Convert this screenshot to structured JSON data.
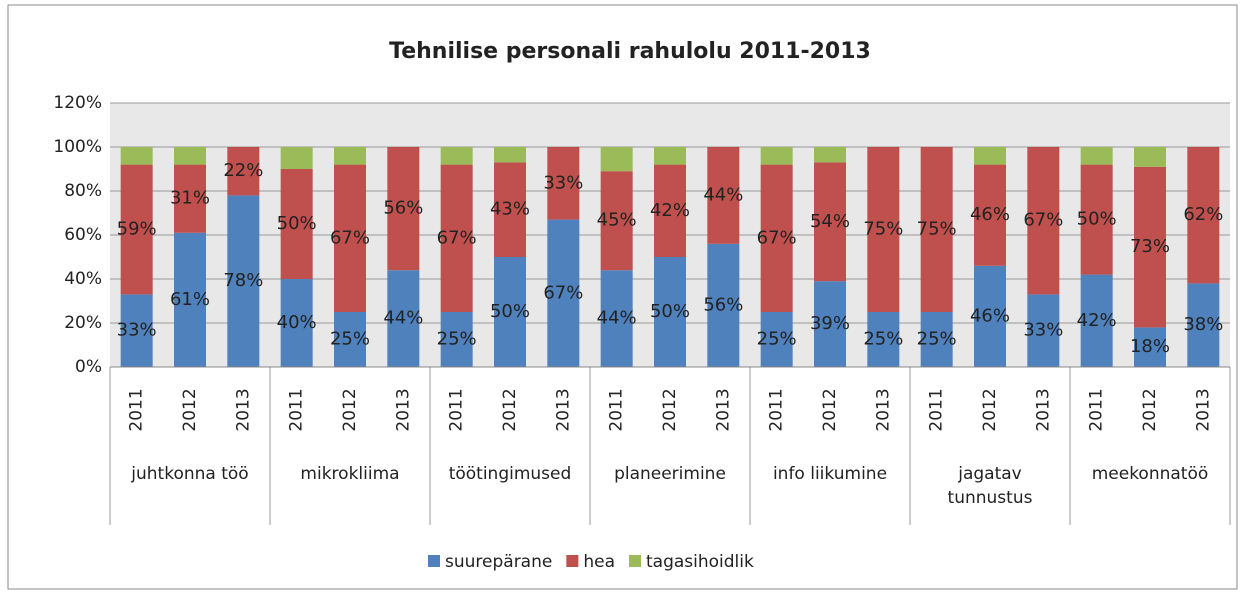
{
  "chart_data": {
    "type": "stacked_bar",
    "title": "Tehnilise personali rahulolu 2011-2013",
    "groups": [
      {
        "label": "juhtkonna töö",
        "categories": [
          "2011",
          "2012",
          "2013"
        ]
      },
      {
        "label": "mikrokliima",
        "categories": [
          "2011",
          "2012",
          "2013"
        ]
      },
      {
        "label": "töötingimused",
        "categories": [
          "2011",
          "2012",
          "2013"
        ]
      },
      {
        "label": "planeerimine",
        "categories": [
          "2011",
          "2012",
          "2013"
        ]
      },
      {
        "label": "info liikumine",
        "categories": [
          "2011",
          "2012",
          "2013"
        ]
      },
      {
        "label": "jagatav tunnustus",
        "categories": [
          "2011",
          "2012",
          "2013"
        ]
      },
      {
        "label": "meekonnatöö",
        "categories": [
          "2011",
          "2012",
          "2013"
        ]
      }
    ],
    "series": [
      {
        "name": "suurepärane",
        "color": "#4f81bd",
        "values": [
          33,
          61,
          78,
          40,
          25,
          44,
          25,
          50,
          67,
          44,
          50,
          56,
          25,
          39,
          25,
          25,
          46,
          33,
          42,
          18,
          38
        ],
        "value_labels": [
          "33%",
          "61%",
          "78%",
          "40%",
          "25%",
          "44%",
          "25%",
          "50%",
          "67%",
          "44%",
          "50%",
          "56%",
          "25%",
          "39%",
          "25%",
          "25%",
          "46%",
          "33%",
          "42%",
          "18%",
          "38%"
        ]
      },
      {
        "name": "hea",
        "color": "#c0504d",
        "values": [
          59,
          31,
          22,
          50,
          67,
          56,
          67,
          43,
          33,
          45,
          42,
          44,
          67,
          54,
          75,
          75,
          46,
          67,
          50,
          73,
          62
        ],
        "value_labels": [
          "59%",
          "31%",
          "22%",
          "50%",
          "67%",
          "56%",
          "67%",
          "43%",
          "33%",
          "45%",
          "42%",
          "44%",
          "67%",
          "54%",
          "75%",
          "75%",
          "46%",
          "67%",
          "50%",
          "73%",
          "62%"
        ]
      },
      {
        "name": "tagasihoidlik",
        "color": "#9bbb59",
        "values": [
          8,
          8,
          0,
          10,
          8,
          0,
          8,
          7,
          0,
          11,
          8,
          0,
          8,
          7,
          0,
          0,
          8,
          0,
          8,
          9,
          0
        ]
      }
    ],
    "ylim": [
      0,
      120
    ],
    "yticks": [
      {
        "value": 0,
        "label": "0%"
      },
      {
        "value": 20,
        "label": "20%"
      },
      {
        "value": 40,
        "label": "40%"
      },
      {
        "value": 60,
        "label": "60%"
      },
      {
        "value": 80,
        "label": "80%"
      },
      {
        "value": 100,
        "label": "100%"
      },
      {
        "value": 120,
        "label": "120%"
      }
    ],
    "grid": true
  }
}
